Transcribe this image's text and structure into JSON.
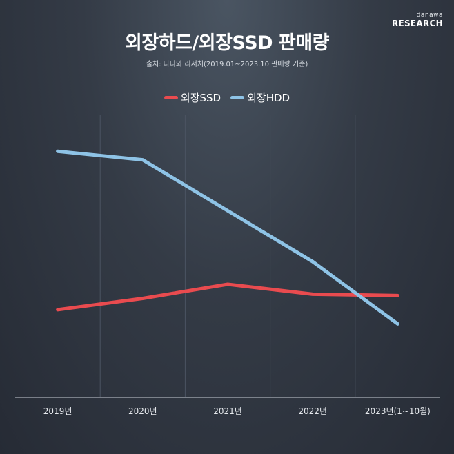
{
  "brand": {
    "top": "danawa",
    "main": "RESEARCH"
  },
  "title": "외장하드/외장SSD 판매량",
  "source": "출처: 다나와 리서치(2019.01~2023.10 판매량 기준)",
  "colors": {
    "ssd": "#e94b4f",
    "hdd": "#8ec3e6",
    "grid": "#4b5462",
    "axis": "#c9ced6"
  },
  "chart_data": {
    "type": "line",
    "title": "외장하드/외장SSD 판매량",
    "categories": [
      "2019년",
      "2020년",
      "2021년",
      "2022년",
      "2023년(1~10월)"
    ],
    "series": [
      {
        "name": "외장SSD",
        "values": [
          31,
          35,
          40,
          36.5,
          36
        ]
      },
      {
        "name": "외장HDD",
        "values": [
          87,
          84,
          66,
          48,
          26
        ]
      }
    ],
    "xlabel": "",
    "ylabel": "",
    "ylim": [
      0,
      100
    ],
    "grid": true,
    "legend": "top-center"
  }
}
